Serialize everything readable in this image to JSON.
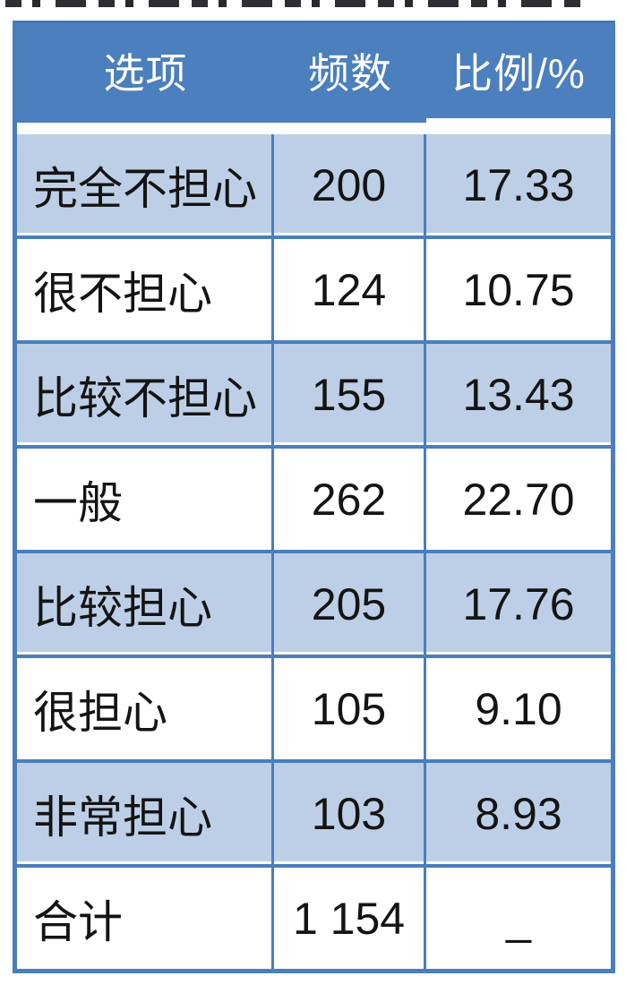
{
  "table": {
    "columns": [
      "选项",
      "频数",
      "比例/%"
    ],
    "rows": [
      {
        "label": "完全不担心",
        "freq": "200",
        "pct": "17.33"
      },
      {
        "label": "很不担心",
        "freq": "124",
        "pct": "10.75"
      },
      {
        "label": "比较不担心",
        "freq": "155",
        "pct": "13.43"
      },
      {
        "label": "一般",
        "freq": "262",
        "pct": "22.70"
      },
      {
        "label": "比较担心",
        "freq": "205",
        "pct": "17.76"
      },
      {
        "label": "很担心",
        "freq": "105",
        "pct": "9.10"
      },
      {
        "label": "非常担心",
        "freq": "103",
        "pct": "8.93"
      },
      {
        "label": "合计",
        "freq": "1 154",
        "pct": "_"
      }
    ],
    "colors": {
      "header_bg": "#4b7fbe",
      "band_bg": "#bccfe6",
      "grid": "#4a7ebc",
      "header_text": "#ffffff",
      "body_text": "#141414"
    }
  },
  "chart_data": {
    "type": "table",
    "title": "",
    "columns": [
      "选项",
      "频数",
      "比例/%"
    ],
    "categories": [
      "完全不担心",
      "很不担心",
      "比较不担心",
      "一般",
      "比较担心",
      "很担心",
      "非常担心"
    ],
    "series": [
      {
        "name": "频数",
        "values": [
          200,
          124,
          155,
          262,
          205,
          105,
          103
        ]
      },
      {
        "name": "比例/%",
        "values": [
          17.33,
          10.75,
          13.43,
          22.7,
          17.76,
          9.1,
          8.93
        ]
      }
    ],
    "total": {
      "label": "合计",
      "freq": "1 154",
      "pct": null
    },
    "layout": {
      "banded_rows": true,
      "band_start": "shaded",
      "header_fill": "#4b7fbe"
    }
  }
}
